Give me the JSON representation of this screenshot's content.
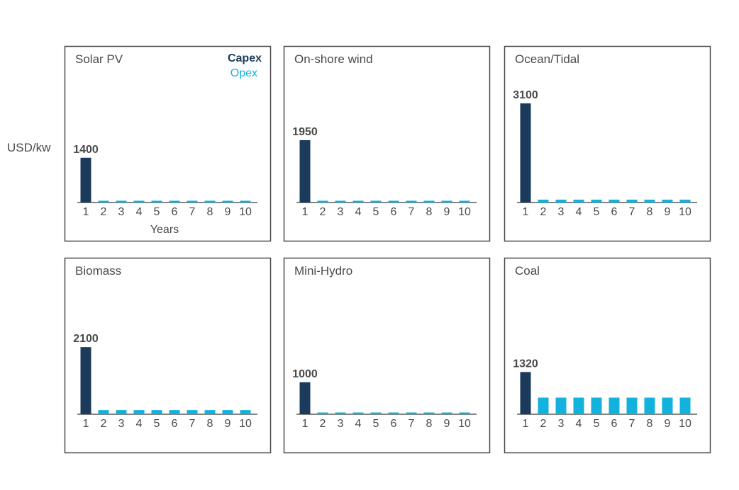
{
  "unit_label": "USD/kw",
  "x_axis_label": "Years",
  "legend": {
    "capex": {
      "label": "Capex",
      "color": "#1b3a5c"
    },
    "opex": {
      "label": "Opex",
      "color": "#12b2dd"
    }
  },
  "colors": {
    "frame": "#4a4a4a",
    "text": "#4a4a4a",
    "axis": "#3a3a3a"
  },
  "chart_data": [
    {
      "type": "bar",
      "title": "Solar PV",
      "categories": [
        "1",
        "2",
        "3",
        "4",
        "5",
        "6",
        "7",
        "8",
        "9",
        "10"
      ],
      "series": [
        {
          "name": "Capex",
          "values": [
            1400,
            0,
            0,
            0,
            0,
            0,
            0,
            0,
            0,
            0
          ]
        },
        {
          "name": "Opex",
          "values": [
            0,
            40,
            40,
            40,
            40,
            40,
            40,
            40,
            40,
            40
          ]
        }
      ],
      "data_labels": [
        "1400"
      ],
      "ylabel": "USD/kw",
      "xlabel": "Years",
      "ylim": [
        0,
        3100
      ],
      "legend": "top-right"
    },
    {
      "type": "bar",
      "title": "On-shore wind",
      "categories": [
        "1",
        "2",
        "3",
        "4",
        "5",
        "6",
        "7",
        "8",
        "9",
        "10"
      ],
      "series": [
        {
          "name": "Capex",
          "values": [
            1950,
            0,
            0,
            0,
            0,
            0,
            0,
            0,
            0,
            0
          ]
        },
        {
          "name": "Opex",
          "values": [
            0,
            40,
            40,
            40,
            40,
            40,
            40,
            40,
            40,
            40
          ]
        }
      ],
      "data_labels": [
        "1950"
      ],
      "ylim": [
        0,
        3100
      ]
    },
    {
      "type": "bar",
      "title": "Ocean/Tidal",
      "categories": [
        "1",
        "2",
        "3",
        "4",
        "5",
        "6",
        "7",
        "8",
        "9",
        "10"
      ],
      "series": [
        {
          "name": "Capex",
          "values": [
            3100,
            0,
            0,
            0,
            0,
            0,
            0,
            0,
            0,
            0
          ]
        },
        {
          "name": "Opex",
          "values": [
            0,
            90,
            90,
            90,
            90,
            90,
            90,
            90,
            90,
            90
          ]
        }
      ],
      "data_labels": [
        "3100"
      ],
      "ylim": [
        0,
        3100
      ]
    },
    {
      "type": "bar",
      "title": "Biomass",
      "categories": [
        "1",
        "2",
        "3",
        "4",
        "5",
        "6",
        "7",
        "8",
        "9",
        "10"
      ],
      "series": [
        {
          "name": "Capex",
          "values": [
            2100,
            0,
            0,
            0,
            0,
            0,
            0,
            0,
            0,
            0
          ]
        },
        {
          "name": "Opex",
          "values": [
            0,
            130,
            130,
            130,
            130,
            130,
            130,
            130,
            130,
            130
          ]
        }
      ],
      "data_labels": [
        "2100"
      ],
      "ylim": [
        0,
        3100
      ]
    },
    {
      "type": "bar",
      "title": "Mini-Hydro",
      "categories": [
        "1",
        "2",
        "3",
        "4",
        "5",
        "6",
        "7",
        "8",
        "9",
        "10"
      ],
      "series": [
        {
          "name": "Capex",
          "values": [
            1000,
            0,
            0,
            0,
            0,
            0,
            0,
            0,
            0,
            0
          ]
        },
        {
          "name": "Opex",
          "values": [
            0,
            50,
            50,
            50,
            50,
            50,
            50,
            50,
            50,
            50
          ]
        }
      ],
      "data_labels": [
        "1000"
      ],
      "ylim": [
        0,
        3100
      ]
    },
    {
      "type": "bar",
      "title": "Coal",
      "categories": [
        "1",
        "2",
        "3",
        "4",
        "5",
        "6",
        "7",
        "8",
        "9",
        "10"
      ],
      "series": [
        {
          "name": "Capex",
          "values": [
            1320,
            0,
            0,
            0,
            0,
            0,
            0,
            0,
            0,
            0
          ]
        },
        {
          "name": "Opex",
          "values": [
            0,
            520,
            520,
            520,
            520,
            520,
            520,
            520,
            520,
            520
          ]
        }
      ],
      "data_labels": [
        "1320"
      ],
      "ylim": [
        0,
        3100
      ]
    }
  ]
}
